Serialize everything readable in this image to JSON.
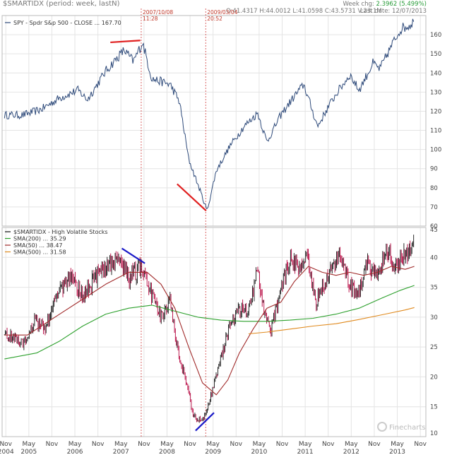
{
  "header": {
    "app_title": "$SMARTIDX (period: week, lastN)",
    "ohlc": "O:41.4317  H:44.0012  L:41.0598  C:43.5731  V:23.1M",
    "week_chg_label": "Week chg:",
    "week_chg_value": "2.3962 (5.499%)",
    "last_date": "Last date: 12/07/2013"
  },
  "annotations": {
    "line1_date": "2007/10/08",
    "line1_time": "11:28",
    "line2_date": "2009/03/04",
    "line2_time": "20:52"
  },
  "watermark": "Finecharts",
  "colors": {
    "spy_line": "#2e4a7a",
    "candle_up": "#111111",
    "candle_down": "#b5003c",
    "sma200": "#2ca02c",
    "sma50": "#a12b2b",
    "sma500": "#e08a1e",
    "trend_red": "#e02020",
    "trend_blue": "#1a1ac8",
    "vline": "#d04040",
    "grid": "#e4e4e4"
  },
  "chart_data": [
    {
      "type": "line",
      "legend": "SPY - Spdr S&p 500 - CLOSE ... 167.70",
      "ylim": [
        60,
        170
      ],
      "yticks": [
        60,
        70,
        80,
        90,
        100,
        110,
        120,
        130,
        140,
        150,
        160
      ],
      "x": [
        2004.8,
        2005.2,
        2005.6,
        2006.0,
        2006.4,
        2006.6,
        2007.0,
        2007.4,
        2007.6,
        2007.8,
        2008.0,
        2008.4,
        2008.6,
        2008.8,
        2008.95,
        2009.1,
        2009.2,
        2009.4,
        2009.7,
        2010.0,
        2010.3,
        2010.5,
        2010.8,
        2011.1,
        2011.3,
        2011.6,
        2011.8,
        2012.0,
        2012.3,
        2012.5,
        2012.8,
        2012.95,
        2013.2,
        2013.4,
        2013.6,
        2013.7
      ],
      "values": [
        118,
        118,
        121,
        127,
        131,
        126,
        141,
        152,
        146,
        156,
        137,
        134,
        125,
        95,
        85,
        75,
        68,
        89,
        102,
        112,
        119,
        104,
        118,
        128,
        134,
        112,
        121,
        129,
        139,
        131,
        145,
        142,
        154,
        163,
        165,
        167.7
      ],
      "trendlines": [
        {
          "color": "red",
          "x": [
            2007.1,
            2007.75
          ],
          "y": [
            156,
            157
          ]
        },
        {
          "color": "red",
          "x": [
            2008.55,
            2009.18
          ],
          "y": [
            82,
            68
          ]
        }
      ]
    },
    {
      "type": "candlestick",
      "legend": [
        "$SMARTIDX - High Volatile Stocks",
        "SMA(200) ... 35.29",
        "SMA(50) ... 38.47",
        "SMA(500) ... 31.58"
      ],
      "ylim": [
        10,
        45
      ],
      "yticks": [
        10,
        15,
        20,
        25,
        30,
        35,
        40,
        45
      ],
      "close": [
        [
          2004.8,
          27
        ],
        [
          2005.0,
          26.5
        ],
        [
          2005.2,
          25.5
        ],
        [
          2005.45,
          29.5
        ],
        [
          2005.7,
          28
        ],
        [
          2005.95,
          34
        ],
        [
          2006.3,
          37
        ],
        [
          2006.5,
          33
        ],
        [
          2006.75,
          36.5
        ],
        [
          2007.0,
          38.5
        ],
        [
          2007.3,
          40
        ],
        [
          2007.5,
          36.5
        ],
        [
          2007.8,
          38.5
        ],
        [
          2008.0,
          33.5
        ],
        [
          2008.2,
          30
        ],
        [
          2008.4,
          32.5
        ],
        [
          2008.55,
          25
        ],
        [
          2008.75,
          19
        ],
        [
          2008.9,
          13.5
        ],
        [
          2009.1,
          12.5
        ],
        [
          2009.25,
          16
        ],
        [
          2009.5,
          23
        ],
        [
          2009.7,
          29
        ],
        [
          2009.9,
          31.5
        ],
        [
          2010.1,
          31
        ],
        [
          2010.3,
          38
        ],
        [
          2010.45,
          30
        ],
        [
          2010.6,
          28
        ],
        [
          2010.8,
          35
        ],
        [
          2011.0,
          40
        ],
        [
          2011.2,
          38
        ],
        [
          2011.35,
          41
        ],
        [
          2011.55,
          32
        ],
        [
          2011.7,
          35
        ],
        [
          2011.9,
          38
        ],
        [
          2012.1,
          41
        ],
        [
          2012.3,
          35
        ],
        [
          2012.5,
          34
        ],
        [
          2012.7,
          39
        ],
        [
          2012.9,
          36.5
        ],
        [
          2013.1,
          41
        ],
        [
          2013.3,
          38.5
        ],
        [
          2013.5,
          40.5
        ],
        [
          2013.6,
          41.5
        ],
        [
          2013.7,
          43.6
        ]
      ],
      "sma200": {
        "x": [
          2004.8,
          2005.5,
          2006.0,
          2006.5,
          2007.0,
          2007.5,
          2008.0,
          2008.5,
          2009.0,
          2009.5,
          2010.0,
          2010.5,
          2011.0,
          2011.5,
          2012.0,
          2012.5,
          2013.0,
          2013.4,
          2013.7
        ],
        "values": [
          23,
          24,
          26,
          28.5,
          30.5,
          31.5,
          32,
          31,
          30,
          29.5,
          29.3,
          29.3,
          29.5,
          29.8,
          30.5,
          31.5,
          33.2,
          34.5,
          35.3
        ]
      },
      "sma50": {
        "x": [
          2004.8,
          2005.3,
          2006.0,
          2006.5,
          2007.0,
          2007.5,
          2007.9,
          2008.2,
          2008.5,
          2008.8,
          2009.1,
          2009.4,
          2009.65,
          2009.9,
          2010.2,
          2010.5,
          2010.8,
          2011.1,
          2011.4,
          2011.7,
          2012.0,
          2012.3,
          2012.6,
          2012.9,
          2013.2,
          2013.5,
          2013.7
        ],
        "values": [
          27,
          27,
          30.5,
          33,
          35.5,
          37.5,
          37.5,
          35.5,
          31.5,
          25,
          19,
          17,
          19.5,
          24,
          28,
          31.5,
          32.5,
          36,
          38.5,
          37.5,
          37,
          37.5,
          37,
          37.5,
          38.5,
          38,
          38.5
        ]
      },
      "sma500": {
        "x": [
          2010.1,
          2010.5,
          2011.0,
          2011.5,
          2012.0,
          2012.5,
          2013.0,
          2013.5,
          2013.7
        ],
        "values": [
          27.2,
          27.5,
          28,
          28.5,
          28.9,
          29.6,
          30.4,
          31.2,
          31.6
        ]
      },
      "trendlines": [
        {
          "color": "blue",
          "x": [
            2007.35,
            2007.85
          ],
          "y": [
            41.5,
            39
          ]
        },
        {
          "color": "blue",
          "x": [
            2008.95,
            2009.35
          ],
          "y": [
            11,
            14
          ]
        }
      ]
    }
  ],
  "x_axis": {
    "months": [
      "Nov",
      "May",
      "Nov",
      "May",
      "Nov",
      "May",
      "Nov",
      "May",
      "Nov",
      "May",
      "Nov",
      "May",
      "Nov",
      "May",
      "Nov",
      "May",
      "Nov",
      "May",
      "Nov"
    ],
    "years": [
      "2004",
      "2005",
      "2006",
      "2007",
      "2008",
      "2009",
      "2010",
      "2011",
      "2012",
      "2013"
    ]
  }
}
